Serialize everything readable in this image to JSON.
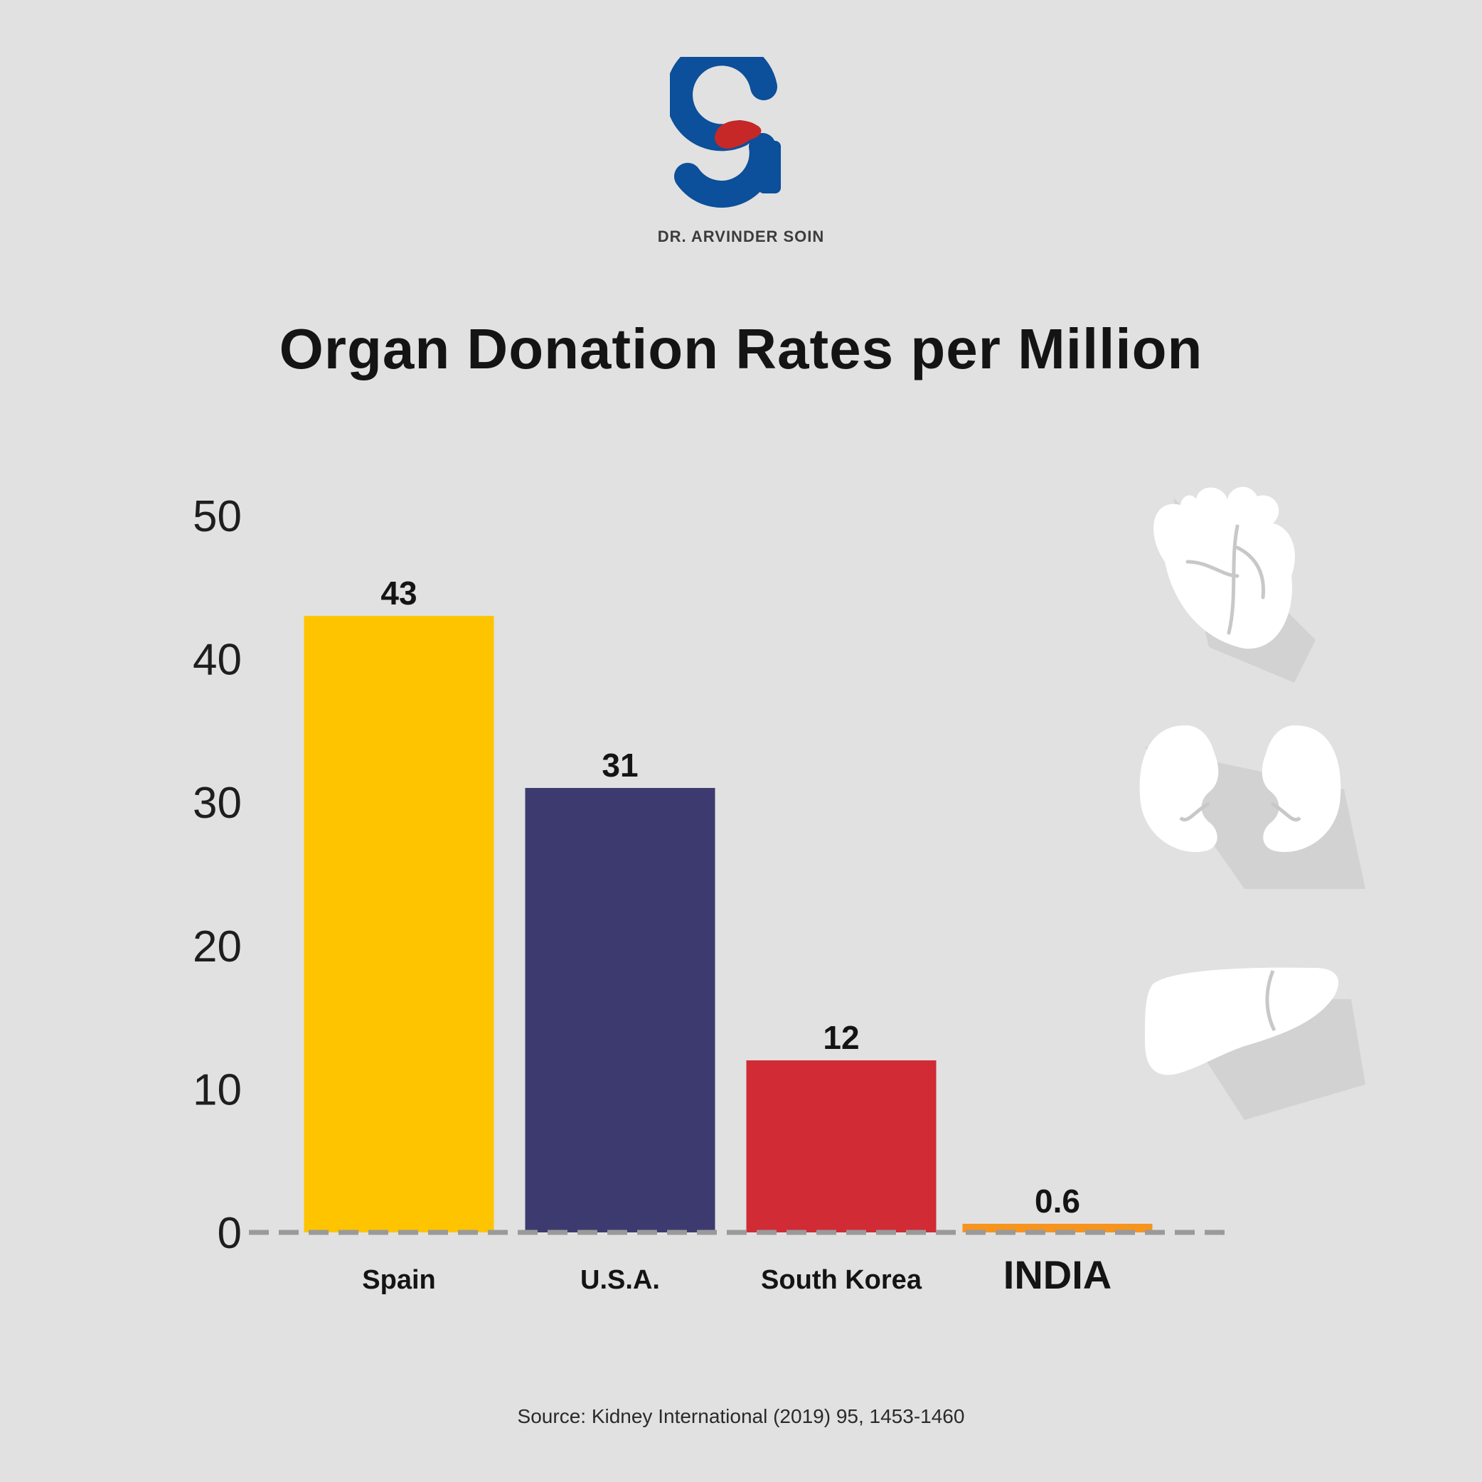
{
  "brand": {
    "name": "DR. ARVINDER SOIN",
    "logo_color": "#0c4f9a",
    "logo_accent": "#c62828"
  },
  "chart_data": {
    "type": "bar",
    "title": "Organ Donation Rates per Million",
    "categories": [
      "Spain",
      "U.S.A.",
      "South Korea",
      "INDIA"
    ],
    "values": [
      43,
      31,
      12,
      0.6
    ],
    "value_labels": [
      "43",
      "31",
      "12",
      "0.6"
    ],
    "colors": [
      "#ffc400",
      "#3c3a6e",
      "#d12b36",
      "#f7941d"
    ],
    "ylim": [
      0,
      50
    ],
    "yticks": [
      0,
      10,
      20,
      30,
      40,
      50
    ],
    "grid": false,
    "xlabel": "",
    "ylabel": ""
  },
  "icons": [
    "heart-icon",
    "kidneys-icon",
    "liver-icon"
  ],
  "source": "Source: Kidney International (2019) 95, 1453-1460"
}
